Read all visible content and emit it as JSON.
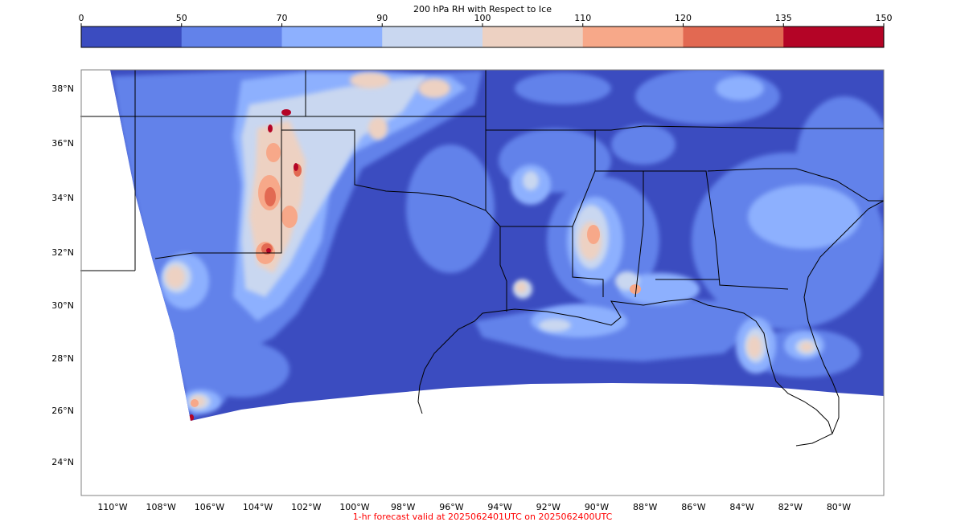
{
  "colorbar": {
    "title": "200 hPa RH with Respect to Ice",
    "ticks": [
      "0",
      "50",
      "70",
      "90",
      "100",
      "110",
      "120",
      "135",
      "150"
    ],
    "colors": [
      "#3b4cc0",
      "#6282ea",
      "#8db0fe",
      "#c9d7f0",
      "#edd1c2",
      "#f7a889",
      "#e26952",
      "#b40426"
    ]
  },
  "axes": {
    "lon_labels": [
      "110°W",
      "108°W",
      "106°W",
      "104°W",
      "102°W",
      "100°W",
      "98°W",
      "96°W",
      "94°W",
      "92°W",
      "90°W",
      "88°W",
      "86°W",
      "84°W",
      "82°W",
      "80°W"
    ],
    "lat_labels": [
      "38°N",
      "36°N",
      "34°N",
      "32°N",
      "30°N",
      "28°N",
      "26°N",
      "24°N"
    ]
  },
  "footer": "1-hr forecast valid at 2025062401UTC on 2025062400UTC"
}
